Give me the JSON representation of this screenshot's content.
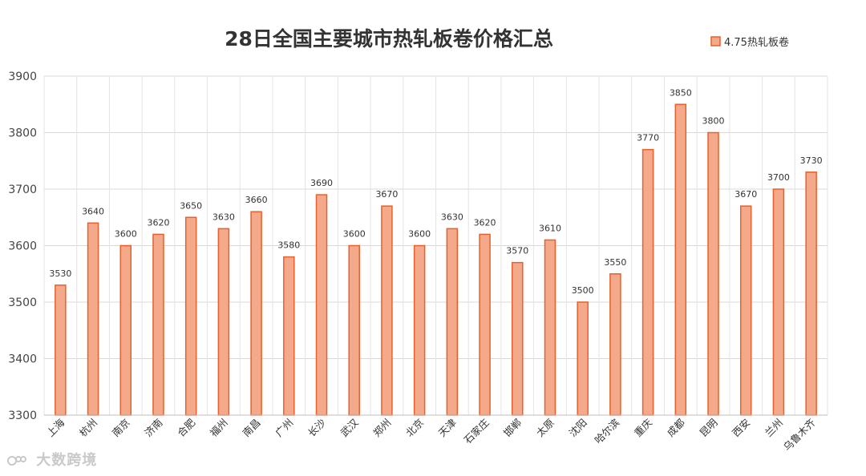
{
  "chart_data": {
    "type": "bar",
    "title": "28日全国主要城市热轧板卷价格汇总",
    "xlabel": "",
    "ylabel": "",
    "ylim": [
      3300,
      3900
    ],
    "yticks": [
      3300,
      3400,
      3500,
      3600,
      3700,
      3800,
      3900
    ],
    "grid": true,
    "legend_position": "top-right",
    "categories": [
      "上海",
      "杭州",
      "南京",
      "济南",
      "合肥",
      "福州",
      "南昌",
      "广州",
      "长沙",
      "武汉",
      "郑州",
      "北京",
      "天津",
      "石家庄",
      "邯郸",
      "太原",
      "沈阳",
      "哈尔滨",
      "重庆",
      "成都",
      "昆明",
      "西安",
      "兰州",
      "乌鲁木齐"
    ],
    "series": [
      {
        "name": "4.75热轧板卷",
        "values": [
          3530,
          3640,
          3600,
          3620,
          3650,
          3630,
          3660,
          3580,
          3690,
          3600,
          3670,
          3600,
          3630,
          3620,
          3570,
          3610,
          3500,
          3550,
          3770,
          3850,
          3800,
          3670,
          3700,
          3730
        ],
        "color": "#f4a98a",
        "border_color": "#e8602c"
      }
    ]
  },
  "watermark": {
    "text": "大数跨境"
  }
}
